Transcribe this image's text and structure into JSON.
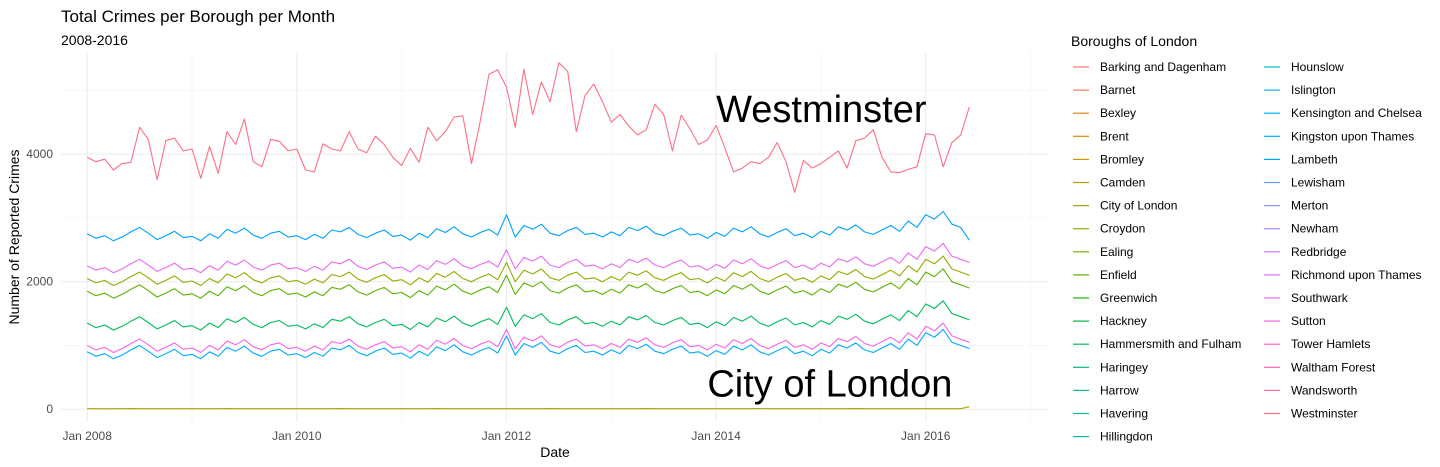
{
  "chart_data": {
    "type": "line",
    "title": "Total Crimes per Borough per Month",
    "subtitle": "2008-2016",
    "xlabel": "Date",
    "ylabel": "Number of Reported Crimes",
    "xlim": [
      "2007-10",
      "2017-03"
    ],
    "ylim": [
      -200,
      5600
    ],
    "x_ticks": [
      {
        "date": "2008-01",
        "label": "Jan 2008"
      },
      {
        "date": "2010-01",
        "label": "Jan 2010"
      },
      {
        "date": "2012-01",
        "label": "Jan 2012"
      },
      {
        "date": "2014-01",
        "label": "Jan 2014"
      },
      {
        "date": "2016-01",
        "label": "Jan 2016"
      }
    ],
    "y_ticks": [
      0,
      2000,
      4000
    ],
    "grid": true,
    "x_start": "2008-01",
    "x_end": "2016-12",
    "legend": {
      "title": "Boroughs of London",
      "position": "right",
      "entries": [
        {
          "name": "Barking and Dagenham",
          "color": "#F8766D"
        },
        {
          "name": "Barnet",
          "color": "#F17D50"
        },
        {
          "name": "Bexley",
          "color": "#E7861B"
        },
        {
          "name": "Brent",
          "color": "#DB8E00"
        },
        {
          "name": "Bromley",
          "color": "#CE9600"
        },
        {
          "name": "Camden",
          "color": "#BE9C00"
        },
        {
          "name": "City of London",
          "color": "#ABA300"
        },
        {
          "name": "Croydon",
          "color": "#97A900"
        },
        {
          "name": "Ealing",
          "color": "#7CAE00"
        },
        {
          "name": "Enfield",
          "color": "#5BB300"
        },
        {
          "name": "Greenwich",
          "color": "#1FB700"
        },
        {
          "name": "Hackney",
          "color": "#00BA38"
        },
        {
          "name": "Hammersmith and Fulham",
          "color": "#00BC59"
        },
        {
          "name": "Haringey",
          "color": "#00BE75"
        },
        {
          "name": "Harrow",
          "color": "#00C08B"
        },
        {
          "name": "Havering",
          "color": "#00C1A1"
        },
        {
          "name": "Hillingdon",
          "color": "#00C0B6"
        },
        {
          "name": "Hounslow",
          "color": "#00BECA"
        },
        {
          "name": "Islington",
          "color": "#00BADE"
        },
        {
          "name": "Kensington and Chelsea",
          "color": "#00B4EF"
        },
        {
          "name": "Kingston upon Thames",
          "color": "#00ABFD"
        },
        {
          "name": "Lambeth",
          "color": "#00A2FF"
        },
        {
          "name": "Lewisham",
          "color": "#619CFF"
        },
        {
          "name": "Merton",
          "color": "#8F91FF"
        },
        {
          "name": "Newham",
          "color": "#AC88FF"
        },
        {
          "name": "Redbridge",
          "color": "#C77CFF"
        },
        {
          "name": "Richmond upon Thames",
          "color": "#DB72FB"
        },
        {
          "name": "Southwark",
          "color": "#EB69F0"
        },
        {
          "name": "Sutton",
          "color": "#F564E3"
        },
        {
          "name": "Tower Hamlets",
          "color": "#FF61C3"
        },
        {
          "name": "Waltham Forest",
          "color": "#FF64B0"
        },
        {
          "name": "Wandsworth",
          "color": "#FF6A98"
        },
        {
          "name": "Westminster",
          "color": "#FD6F86"
        }
      ]
    },
    "annotations": [
      {
        "text": "Westminster",
        "x": "2014-01",
        "y": 4500
      },
      {
        "text": "City of London",
        "x": "2013-12",
        "y": 200
      }
    ],
    "series": [
      {
        "name": "Westminster",
        "color": "#FD6F86",
        "values": [
          3950,
          3880,
          3920,
          3750,
          3850,
          3870,
          4420,
          4230,
          3600,
          4210,
          4250,
          4050,
          4080,
          3620,
          4120,
          3700,
          4350,
          4150,
          4550,
          3880,
          3800,
          4230,
          4200,
          4050,
          4080,
          3750,
          3720,
          4160,
          4080,
          4050,
          4350,
          4080,
          4020,
          4280,
          4150,
          3950,
          3820,
          4090,
          3870,
          4420,
          4210,
          4350,
          4580,
          4600,
          3850,
          4520,
          5250,
          5320,
          5050,
          4420,
          5330,
          4620,
          5130,
          4820,
          5430,
          5300,
          4350,
          4920,
          5100,
          4820,
          4500,
          4620,
          4440,
          4300,
          4380,
          4780,
          4620,
          4050,
          4610,
          4400,
          4150,
          4220,
          4450,
          4100,
          3720,
          3780,
          3880,
          3850,
          3950,
          4180,
          3880,
          3400,
          3900,
          3780,
          3850,
          3950,
          4050,
          3780,
          4210,
          4250,
          4380,
          3950,
          3720,
          3710,
          3760,
          3800,
          4320,
          4300,
          3800,
          4180,
          4300,
          4740
        ]
      },
      {
        "name": "City of London",
        "color": "#ABA300",
        "values": [
          8,
          8,
          7,
          9,
          8,
          10,
          9,
          8,
          9,
          8,
          9,
          8,
          8,
          8,
          9,
          8,
          10,
          9,
          8,
          9,
          8,
          9,
          8,
          8,
          8,
          8,
          9,
          8,
          9,
          10,
          9,
          8,
          9,
          8,
          9,
          8,
          8,
          8,
          9,
          8,
          10,
          9,
          8,
          9,
          8,
          9,
          8,
          8,
          8,
          8,
          9,
          8,
          9,
          10,
          9,
          8,
          9,
          8,
          9,
          8,
          8,
          8,
          9,
          8,
          10,
          9,
          8,
          9,
          8,
          9,
          8,
          8,
          8,
          8,
          9,
          8,
          9,
          10,
          9,
          8,
          9,
          8,
          9,
          8,
          8,
          8,
          9,
          8,
          10,
          9,
          8,
          9,
          8,
          9,
          8,
          8,
          8,
          8,
          9,
          8,
          9,
          40
        ]
      },
      {
        "name": "Lambeth",
        "color": "#00A2FF",
        "values": [
          2750,
          2680,
          2720,
          2640,
          2700,
          2780,
          2850,
          2760,
          2660,
          2720,
          2790,
          2690,
          2710,
          2640,
          2750,
          2680,
          2820,
          2760,
          2840,
          2730,
          2680,
          2760,
          2790,
          2700,
          2720,
          2660,
          2740,
          2680,
          2810,
          2780,
          2850,
          2740,
          2690,
          2760,
          2810,
          2710,
          2730,
          2650,
          2760,
          2690,
          2830,
          2770,
          2860,
          2750,
          2700,
          2770,
          2820,
          2730,
          3050,
          2700,
          2880,
          2820,
          2900,
          2760,
          2720,
          2800,
          2850,
          2740,
          2760,
          2700,
          2780,
          2720,
          2850,
          2800,
          2870,
          2760,
          2720,
          2790,
          2840,
          2730,
          2750,
          2680,
          2770,
          2710,
          2840,
          2780,
          2860,
          2750,
          2700,
          2770,
          2830,
          2720,
          2760,
          2690,
          2790,
          2730,
          2860,
          2810,
          2890,
          2780,
          2740,
          2810,
          2880,
          2790,
          2950,
          2850,
          3050,
          2980,
          3100,
          2900,
          2850,
          2650
        ]
      },
      {
        "name": "Southwark",
        "color": "#EB69F0",
        "values": [
          2250,
          2180,
          2220,
          2140,
          2200,
          2280,
          2350,
          2260,
          2160,
          2220,
          2290,
          2190,
          2210,
          2140,
          2250,
          2180,
          2320,
          2260,
          2340,
          2230,
          2180,
          2260,
          2290,
          2200,
          2220,
          2160,
          2240,
          2180,
          2310,
          2280,
          2350,
          2240,
          2190,
          2260,
          2310,
          2210,
          2230,
          2150,
          2260,
          2190,
          2330,
          2270,
          2360,
          2250,
          2200,
          2270,
          2320,
          2230,
          2500,
          2200,
          2380,
          2320,
          2400,
          2260,
          2220,
          2300,
          2350,
          2240,
          2260,
          2200,
          2280,
          2220,
          2350,
          2300,
          2370,
          2260,
          2220,
          2290,
          2340,
          2230,
          2250,
          2180,
          2270,
          2210,
          2340,
          2280,
          2360,
          2250,
          2200,
          2270,
          2330,
          2220,
          2260,
          2190,
          2290,
          2230,
          2360,
          2310,
          2390,
          2280,
          2240,
          2310,
          2380,
          2290,
          2450,
          2350,
          2550,
          2480,
          2600,
          2400,
          2350,
          2300
        ]
      },
      {
        "name": "Croydon",
        "color": "#97A900",
        "values": [
          2050,
          1980,
          2020,
          1940,
          2000,
          2080,
          2150,
          2060,
          1960,
          2020,
          2090,
          1990,
          2010,
          1940,
          2050,
          1980,
          2120,
          2060,
          2140,
          2030,
          1980,
          2060,
          2090,
          2000,
          2020,
          1960,
          2040,
          1980,
          2110,
          2080,
          2150,
          2040,
          1990,
          2060,
          2110,
          2010,
          2030,
          1950,
          2060,
          1990,
          2130,
          2070,
          2160,
          2050,
          2000,
          2070,
          2120,
          2030,
          2300,
          2000,
          2180,
          2120,
          2200,
          2060,
          2020,
          2100,
          2150,
          2040,
          2060,
          2000,
          2080,
          2020,
          2150,
          2100,
          2170,
          2060,
          2020,
          2090,
          2140,
          2030,
          2050,
          1980,
          2070,
          2010,
          2140,
          2080,
          2160,
          2050,
          2000,
          2070,
          2130,
          2020,
          2060,
          1990,
          2090,
          2030,
          2160,
          2110,
          2190,
          2080,
          2040,
          2110,
          2180,
          2090,
          2250,
          2150,
          2350,
          2280,
          2400,
          2200,
          2150,
          2100
        ]
      },
      {
        "name": "Enfield",
        "color": "#5BB300",
        "values": [
          1850,
          1780,
          1820,
          1740,
          1800,
          1880,
          1950,
          1860,
          1760,
          1820,
          1890,
          1790,
          1810,
          1740,
          1850,
          1780,
          1920,
          1860,
          1940,
          1830,
          1780,
          1860,
          1890,
          1800,
          1820,
          1760,
          1840,
          1780,
          1910,
          1880,
          1950,
          1840,
          1790,
          1860,
          1910,
          1810,
          1830,
          1750,
          1860,
          1790,
          1930,
          1870,
          1960,
          1850,
          1800,
          1870,
          1920,
          1830,
          2100,
          1800,
          1980,
          1920,
          2000,
          1860,
          1820,
          1900,
          1950,
          1840,
          1860,
          1800,
          1880,
          1820,
          1950,
          1900,
          1970,
          1860,
          1820,
          1890,
          1940,
          1830,
          1850,
          1780,
          1870,
          1810,
          1940,
          1880,
          1960,
          1850,
          1800,
          1870,
          1930,
          1820,
          1860,
          1790,
          1890,
          1830,
          1960,
          1910,
          1990,
          1880,
          1840,
          1910,
          1980,
          1890,
          2050,
          1950,
          2150,
          2080,
          2200,
          2000,
          1950,
          1900
        ]
      },
      {
        "name": "Hammersmith and Fulham",
        "color": "#00BC59",
        "values": [
          1350,
          1280,
          1320,
          1240,
          1300,
          1380,
          1450,
          1360,
          1260,
          1320,
          1390,
          1290,
          1310,
          1240,
          1350,
          1280,
          1420,
          1360,
          1440,
          1330,
          1280,
          1360,
          1390,
          1300,
          1320,
          1260,
          1340,
          1280,
          1410,
          1380,
          1450,
          1340,
          1290,
          1360,
          1410,
          1310,
          1330,
          1250,
          1360,
          1290,
          1430,
          1370,
          1460,
          1350,
          1300,
          1370,
          1420,
          1330,
          1600,
          1300,
          1480,
          1420,
          1500,
          1360,
          1320,
          1400,
          1450,
          1340,
          1360,
          1300,
          1380,
          1320,
          1450,
          1400,
          1470,
          1360,
          1320,
          1390,
          1440,
          1330,
          1350,
          1280,
          1370,
          1310,
          1440,
          1380,
          1460,
          1350,
          1300,
          1370,
          1430,
          1320,
          1360,
          1290,
          1390,
          1330,
          1460,
          1410,
          1490,
          1380,
          1340,
          1410,
          1480,
          1390,
          1550,
          1450,
          1650,
          1580,
          1700,
          1500,
          1450,
          1400
        ]
      },
      {
        "name": "Sutton",
        "color": "#F564E3",
        "values": [
          1000,
          930,
          970,
          890,
          950,
          1030,
          1100,
          1010,
          910,
          970,
          1040,
          940,
          960,
          890,
          1000,
          930,
          1070,
          1010,
          1090,
          980,
          930,
          1010,
          1040,
          950,
          970,
          910,
          990,
          930,
          1060,
          1030,
          1100,
          990,
          940,
          1010,
          1060,
          960,
          980,
          900,
          1010,
          940,
          1080,
          1020,
          1110,
          1000,
          950,
          1020,
          1070,
          980,
          1250,
          950,
          1130,
          1070,
          1150,
          1010,
          970,
          1050,
          1100,
          990,
          1010,
          950,
          1030,
          970,
          1100,
          1050,
          1120,
          1010,
          970,
          1040,
          1090,
          980,
          1000,
          930,
          1020,
          960,
          1090,
          1030,
          1110,
          1000,
          950,
          1020,
          1080,
          970,
          1010,
          940,
          1040,
          980,
          1110,
          1060,
          1140,
          1030,
          990,
          1060,
          1130,
          1040,
          1200,
          1100,
          1300,
          1230,
          1350,
          1150,
          1100,
          1050
        ]
      },
      {
        "name": "Kingston upon Thames",
        "color": "#00ABFD",
        "values": [
          900,
          830,
          870,
          790,
          850,
          930,
          1000,
          910,
          810,
          870,
          940,
          840,
          860,
          790,
          900,
          830,
          970,
          910,
          990,
          880,
          830,
          910,
          940,
          850,
          870,
          810,
          890,
          830,
          960,
          930,
          1000,
          890,
          840,
          910,
          960,
          860,
          880,
          800,
          910,
          840,
          980,
          920,
          1010,
          900,
          850,
          920,
          970,
          880,
          1150,
          850,
          1030,
          970,
          1050,
          910,
          870,
          950,
          1000,
          890,
          910,
          850,
          930,
          870,
          1000,
          950,
          1020,
          910,
          870,
          940,
          990,
          880,
          900,
          830,
          920,
          860,
          990,
          930,
          1010,
          900,
          850,
          920,
          980,
          870,
          910,
          840,
          940,
          880,
          1010,
          960,
          1040,
          930,
          890,
          960,
          1030,
          940,
          1100,
          1000,
          1200,
          1130,
          1250,
          1050,
          1000,
          950
        ]
      }
    ]
  }
}
